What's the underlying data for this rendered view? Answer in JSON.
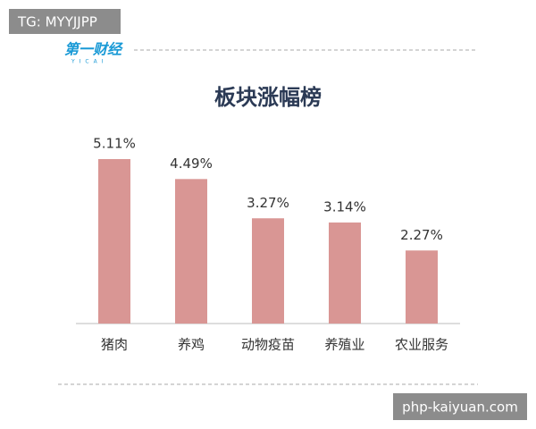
{
  "header": {
    "watermark": "TG: MYYJJPP",
    "logo": "第一财经",
    "logo_sub": "YICAI"
  },
  "chart_data": {
    "type": "bar",
    "title": "板块涨幅榜",
    "categories": [
      "猪肉",
      "养鸡",
      "动物疫苗",
      "养殖业",
      "农业服务"
    ],
    "values": [
      5.11,
      4.49,
      3.27,
      3.14,
      2.27
    ],
    "value_labels": [
      "5.11%",
      "4.49%",
      "3.27%",
      "3.14%",
      "2.27%"
    ],
    "color": "#d99694"
  },
  "footer": {
    "watermark": "php-kaiyuan.com"
  }
}
